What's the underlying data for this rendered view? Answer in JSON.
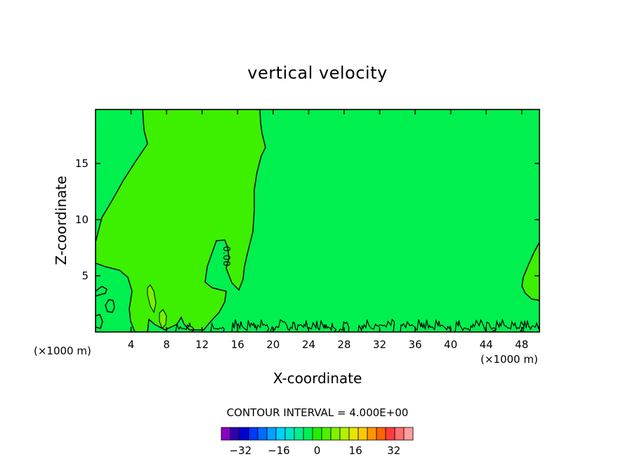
{
  "chart_data": {
    "type": "heatmap",
    "title": "vertical velocity",
    "xlabel": "X-coordinate",
    "ylabel": "Z-coordinate",
    "x_unit_left": "(×1000 m)",
    "x_unit_right": "(×1000 m)",
    "xlim": [
      0,
      50
    ],
    "ylim": [
      0,
      19.8
    ],
    "x_ticks": [
      4,
      8,
      12,
      16,
      20,
      24,
      28,
      32,
      36,
      40,
      44,
      48
    ],
    "y_ticks": [
      5,
      10,
      15
    ],
    "contour_label": "0.00",
    "contour_interval_text": "CONTOUR INTERVAL = 4.000E+00",
    "colorbar": {
      "tick_labels": [
        "−32",
        "−16",
        "0",
        "16",
        "32"
      ],
      "tick_values": [
        -32,
        -16,
        0,
        16,
        32
      ],
      "levels_min": -40,
      "levels_max": 40,
      "step": 4,
      "colors": [
        "#8a00c4",
        "#2a00b0",
        "#0000d0",
        "#0038ff",
        "#006cff",
        "#00a0ff",
        "#00d0ff",
        "#00e6c8",
        "#00f08c",
        "#00f050",
        "#20f000",
        "#50f000",
        "#80f000",
        "#b4f000",
        "#e6e600",
        "#ffc800",
        "#ff9600",
        "#ff6400",
        "#ff3c3c",
        "#ff6e6e",
        "#ff9e9e"
      ]
    },
    "regions": [
      {
        "range": [
          0,
          4
        ],
        "color": "#00f050",
        "description_of": "background field"
      },
      {
        "range": [
          0,
          4
        ],
        "color": "#3cf000",
        "description_of": "updraft plume x 0-18"
      },
      {
        "range": [
          4,
          8
        ],
        "color": "#7cf000",
        "description_of": "small cells near x 6-8, z 1-4"
      }
    ]
  }
}
